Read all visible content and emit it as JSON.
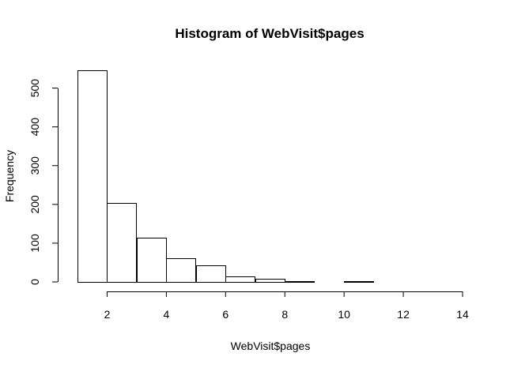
{
  "chart_data": {
    "type": "bar",
    "title": "Histogram of WebVisit$pages",
    "xlabel": "WebVisit$pages",
    "ylabel": "Frequency",
    "bins": [
      {
        "start": 1,
        "end": 2,
        "count": 546
      },
      {
        "start": 2,
        "end": 3,
        "count": 203
      },
      {
        "start": 3,
        "end": 4,
        "count": 114
      },
      {
        "start": 4,
        "end": 5,
        "count": 61
      },
      {
        "start": 5,
        "end": 6,
        "count": 43
      },
      {
        "start": 6,
        "end": 7,
        "count": 14
      },
      {
        "start": 7,
        "end": 8,
        "count": 8
      },
      {
        "start": 8,
        "end": 9,
        "count": 2
      },
      {
        "start": 9,
        "end": 10,
        "count": 1
      },
      {
        "start": 10,
        "end": 11,
        "count": 2
      },
      {
        "start": 11,
        "end": 12,
        "count": 1
      },
      {
        "start": 12,
        "end": 13,
        "count": 0
      },
      {
        "start": 13,
        "end": 14,
        "count": 1
      }
    ],
    "x_ticks": [
      2,
      4,
      6,
      8,
      10,
      12,
      14
    ],
    "y_ticks": [
      0,
      100,
      200,
      300,
      400,
      500
    ],
    "xlim": [
      1,
      14
    ],
    "ylim": [
      0,
      546
    ],
    "grid": false,
    "legend": "none"
  }
}
